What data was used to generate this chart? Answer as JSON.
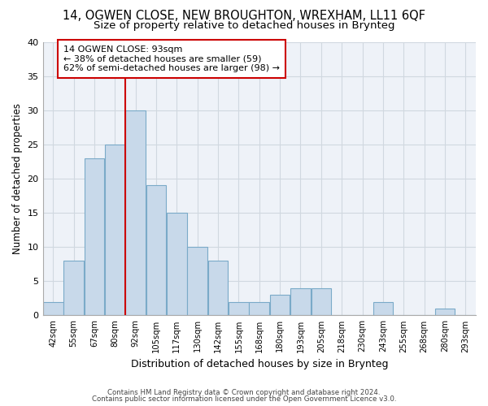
{
  "title1": "14, OGWEN CLOSE, NEW BROUGHTON, WREXHAM, LL11 6QF",
  "title2": "Size of property relative to detached houses in Brynteg",
  "xlabel": "Distribution of detached houses by size in Brynteg",
  "ylabel": "Number of detached properties",
  "footer1": "Contains HM Land Registry data © Crown copyright and database right 2024.",
  "footer2": "Contains public sector information licensed under the Open Government Licence v3.0.",
  "bin_labels": [
    "42sqm",
    "55sqm",
    "67sqm",
    "80sqm",
    "92sqm",
    "105sqm",
    "117sqm",
    "130sqm",
    "142sqm",
    "155sqm",
    "168sqm",
    "180sqm",
    "193sqm",
    "205sqm",
    "218sqm",
    "230sqm",
    "243sqm",
    "255sqm",
    "268sqm",
    "280sqm",
    "293sqm"
  ],
  "bar_values": [
    2,
    8,
    23,
    25,
    30,
    19,
    15,
    10,
    8,
    2,
    2,
    3,
    4,
    4,
    0,
    0,
    2,
    0,
    0,
    1,
    0
  ],
  "bar_color": "#c8d9ea",
  "bar_edge_color": "#7aaac8",
  "annotation_title": "14 OGWEN CLOSE: 93sqm",
  "annotation_line1": "← 38% of detached houses are smaller (59)",
  "annotation_line2": "62% of semi-detached houses are larger (98) →",
  "annotation_box_color": "#ffffff",
  "annotation_border_color": "#cc0000",
  "vline_color": "#cc0000",
  "vline_x_index": 4,
  "ylim": [
    0,
    40
  ],
  "yticks": [
    0,
    5,
    10,
    15,
    20,
    25,
    30,
    35,
    40
  ],
  "grid_color": "#d0d8e0",
  "bg_color": "#eef2f8",
  "title1_fontsize": 10.5,
  "title2_fontsize": 9.5,
  "xlabel_fontsize": 9,
  "ylabel_fontsize": 8.5
}
